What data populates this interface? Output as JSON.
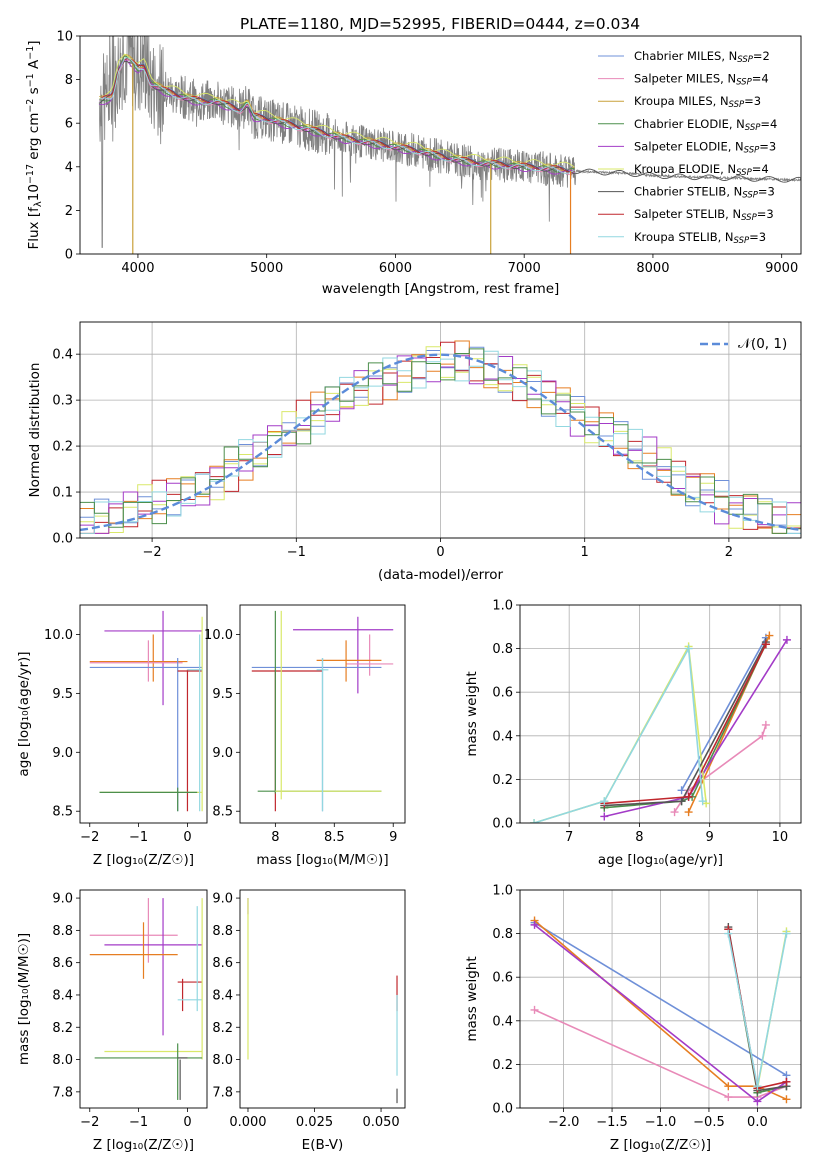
{
  "figure": {
    "title": "PLATE=1180, MJD=52995, FIBERID=0444, z=0.034",
    "series_colors": [
      "#6f90d8",
      "#e88ab8",
      "#c9a13a",
      "#4c8f4c",
      "#a33bc7",
      "#d9e86a",
      "#555555",
      "#c0272d",
      "#92d7e0"
    ]
  },
  "chart_data": [
    {
      "id": "spectrum",
      "type": "line",
      "title": "PLATE=1180, MJD=52995, FIBERID=0444, z=0.034",
      "xlabel": "wavelength [Angstrom, rest frame]",
      "ylabel": "Flux [f$_\\lambda$10$^{-17}$ erg cm$^{-2}$ s$^{-1}$ A$^{-1}$]",
      "ylabel_parts": [
        "Flux [f",
        "λ",
        "10",
        "−17",
        " erg cm",
        "−2",
        " s",
        "−1",
        " A",
        "−1",
        "]"
      ],
      "xlim": [
        3550,
        9150
      ],
      "ylim": [
        0,
        10
      ],
      "xticks": [
        4000,
        5000,
        6000,
        7000,
        8000,
        9000
      ],
      "yticks": [
        0,
        2,
        4,
        6,
        8,
        10
      ],
      "legend_position": "top-right",
      "legend": [
        {
          "name": "Chabrier MILES, N",
          "sub": "SSP",
          "suffix": "=2"
        },
        {
          "name": "Salpeter MILES, N",
          "sub": "SSP",
          "suffix": "=4"
        },
        {
          "name": "Kroupa MILES, N",
          "sub": "SSP",
          "suffix": "=3"
        },
        {
          "name": "Chabrier ELODIE, N",
          "sub": "SSP",
          "suffix": "=4"
        },
        {
          "name": "Salpeter ELODIE, N",
          "sub": "SSP",
          "suffix": "=3"
        },
        {
          "name": "Kroupa ELODIE, N",
          "sub": "SSP",
          "suffix": "=4"
        },
        {
          "name": "Chabrier STELIB, N",
          "sub": "SSP",
          "suffix": "=3"
        },
        {
          "name": "Salpeter STELIB, N",
          "sub": "SSP",
          "suffix": "=3"
        },
        {
          "name": "Kroupa STELIB, N",
          "sub": "SSP",
          "suffix": "=3"
        }
      ],
      "data_color": "#808080",
      "continuum": {
        "x": [
          3700,
          3800,
          3850,
          3900,
          3950,
          4000,
          4050,
          4100,
          4200,
          4300,
          4400,
          4500,
          4600,
          4700,
          4800,
          4850,
          4900,
          5000,
          5200,
          5400,
          5600,
          5800,
          6000,
          6200,
          6400,
          6600,
          6800,
          7000,
          7200,
          7400,
          7600,
          7800,
          8000,
          8200,
          8500,
          8800,
          9100
        ],
        "y": [
          7.0,
          7.2,
          8.5,
          9.0,
          8.8,
          8.5,
          8.6,
          7.8,
          7.5,
          7.3,
          7.1,
          7.0,
          7.0,
          6.8,
          6.6,
          6.9,
          6.3,
          6.2,
          5.9,
          5.6,
          5.3,
          5.1,
          4.9,
          4.7,
          4.4,
          4.2,
          4.1,
          4.0,
          3.9,
          3.8,
          3.75,
          3.7,
          3.6,
          3.55,
          3.5,
          3.45,
          3.4
        ]
      },
      "model_offsets": [
        0.05,
        -0.05,
        0.1,
        0.0,
        -0.1,
        0.25,
        0.0,
        0.05,
        -0.02
      ],
      "model_end": [
        7400,
        7400,
        7400,
        7400,
        7400,
        7400,
        9150,
        7400,
        7400
      ],
      "drop_lines": [
        {
          "x": 3960,
          "color": "#c9a13a"
        },
        {
          "x": 6740,
          "color": "#c9a13a"
        },
        {
          "x": 7360,
          "color": "#e67e22"
        }
      ]
    },
    {
      "id": "residuals",
      "type": "step",
      "xlabel": "(data-model)/error",
      "ylabel": "Normed distribution",
      "xlim": [
        -2.5,
        2.5
      ],
      "ylim": [
        0,
        0.47
      ],
      "xticks": [
        -2,
        -1,
        0,
        1,
        2
      ],
      "yticks": [
        0.0,
        0.1,
        0.2,
        0.3,
        0.4
      ],
      "grid": true,
      "legend": "𝒩(0, 1)",
      "legend_position": "top-right",
      "gauss_color": "#5b8bd9",
      "bin_width": 0.1,
      "bin_start": -2.5,
      "base": [
        0.03,
        0.04,
        0.05,
        0.06,
        0.07,
        0.08,
        0.09,
        0.1,
        0.11,
        0.13,
        0.15,
        0.17,
        0.19,
        0.21,
        0.23,
        0.25,
        0.27,
        0.29,
        0.31,
        0.33,
        0.34,
        0.35,
        0.36,
        0.37,
        0.38,
        0.38,
        0.38,
        0.37,
        0.36,
        0.35,
        0.34,
        0.33,
        0.31,
        0.29,
        0.27,
        0.25,
        0.23,
        0.21,
        0.19,
        0.17,
        0.15,
        0.13,
        0.11,
        0.1,
        0.08,
        0.07,
        0.06,
        0.05,
        0.04,
        0.03
      ]
    },
    {
      "id": "z_age",
      "type": "errorbar",
      "xlabel": "Z [log₁₀(Z/Z☉)]",
      "ylabel": "age  [log₁₀(age/yr)]",
      "xlim": [
        -2.2,
        0.4
      ],
      "ylim": [
        8.4,
        10.25
      ],
      "xticks": [
        -2,
        -1,
        0
      ],
      "yticks": [
        8.5,
        9.0,
        9.5,
        10.0
      ],
      "points": [
        {
          "c": "#a33bc7",
          "x": -0.5,
          "y": 10.03,
          "xe": [
            -1.7,
            0.3
          ],
          "ye": [
            9.4,
            10.2
          ]
        },
        {
          "c": "#e67e22",
          "x": -0.7,
          "y": 9.77,
          "xe": [
            -2.0,
            0.0
          ],
          "ye": [
            9.6,
            10.0
          ]
        },
        {
          "c": "#e88ab8",
          "x": -0.8,
          "y": 9.76,
          "xe": [
            -2.0,
            -0.1
          ],
          "ye": [
            9.6,
            9.95
          ]
        },
        {
          "c": "#6f90d8",
          "x": -0.2,
          "y": 9.72,
          "xe": [
            -2.0,
            0.3
          ],
          "ye": [
            8.5,
            9.8
          ]
        },
        {
          "c": "#c0272d",
          "x": 0.0,
          "y": 9.69,
          "xe": [
            -0.2,
            0.3
          ],
          "ye": [
            8.5,
            9.7
          ]
        },
        {
          "c": "#d9e86a",
          "x": 0.3,
          "y": 8.66,
          "xe": [
            -1.8,
            0.3
          ],
          "ye": [
            8.5,
            10.15
          ]
        },
        {
          "c": "#4c8f4c",
          "x": -0.2,
          "y": 8.66,
          "xe": [
            -1.8,
            0.2
          ],
          "ye": [
            8.5,
            8.7
          ]
        },
        {
          "c": "#92d7e0",
          "x": 0.25,
          "y": 9.7,
          "xe": [
            0.0,
            0.3
          ],
          "ye": [
            8.5,
            10.0
          ]
        }
      ]
    },
    {
      "id": "mass_age",
      "type": "errorbar",
      "xlabel": "mass [log₁₀(M/M☉)]",
      "xlim": [
        7.7,
        9.1
      ],
      "ylim": [
        8.4,
        10.25
      ],
      "xticks": [
        8.0,
        8.5,
        9.0
      ],
      "yticks": [
        8.5,
        9.0,
        9.5,
        10.0
      ],
      "points": [
        {
          "c": "#a33bc7",
          "x": 8.7,
          "y": 10.04,
          "xe": [
            8.15,
            9.0
          ],
          "ye": [
            9.5,
            10.15
          ]
        },
        {
          "c": "#e88ab8",
          "x": 8.8,
          "y": 9.75,
          "xe": [
            8.6,
            9.0
          ],
          "ye": [
            9.65,
            10.0
          ]
        },
        {
          "c": "#e67e22",
          "x": 8.6,
          "y": 9.78,
          "xe": [
            8.35,
            8.9
          ],
          "ye": [
            9.6,
            9.95
          ]
        },
        {
          "c": "#6f90d8",
          "x": 8.4,
          "y": 9.72,
          "xe": [
            7.8,
            8.9
          ],
          "ye": [
            8.5,
            9.8
          ]
        },
        {
          "c": "#c0272d",
          "x": 8.0,
          "y": 9.69,
          "xe": [
            7.8,
            8.4
          ],
          "ye": [
            8.5,
            9.7
          ]
        },
        {
          "c": "#4c8f4c",
          "x": 8.0,
          "y": 8.67,
          "xe": [
            7.85,
            8.9
          ],
          "ye": [
            8.65,
            10.2
          ]
        },
        {
          "c": "#d9e86a",
          "x": 8.05,
          "y": 8.67,
          "xe": [
            8.0,
            8.9
          ],
          "ye": [
            8.6,
            10.2
          ]
        },
        {
          "c": "#92d7e0",
          "x": 8.4,
          "y": 9.7,
          "xe": [
            8.35,
            8.45
          ],
          "ye": [
            8.5,
            9.8
          ]
        }
      ]
    },
    {
      "id": "age_weight",
      "type": "line",
      "xlabel": "age  [log₁₀(age/yr)]",
      "ylabel": "mass weight",
      "xlim": [
        6.3,
        10.3
      ],
      "ylim": [
        0,
        1.0
      ],
      "xticks": [
        7,
        8,
        9,
        10
      ],
      "yticks": [
        0.0,
        0.2,
        0.4,
        0.6,
        0.8,
        1.0
      ],
      "grid": true,
      "series": [
        {
          "c": "#6f90d8",
          "x": [
            8.6,
            9.8
          ],
          "y": [
            0.15,
            0.85
          ]
        },
        {
          "c": "#e88ab8",
          "x": [
            8.5,
            8.7,
            9.75,
            9.8
          ],
          "y": [
            0.05,
            0.15,
            0.4,
            0.45
          ]
        },
        {
          "c": "#e67e22",
          "x": [
            8.7,
            9.85
          ],
          "y": [
            0.05,
            0.86
          ]
        },
        {
          "c": "#4c8f4c",
          "x": [
            7.5,
            8.6,
            8.75,
            9.8
          ],
          "y": [
            0.07,
            0.1,
            0.12,
            0.82
          ]
        },
        {
          "c": "#a33bc7",
          "x": [
            7.5,
            8.7,
            10.1
          ],
          "y": [
            0.03,
            0.12,
            0.84
          ]
        },
        {
          "c": "#d9e86a",
          "x": [
            6.5,
            7.5,
            8.7,
            8.95
          ],
          "y": [
            0.0,
            0.1,
            0.81,
            0.09
          ]
        },
        {
          "c": "#555555",
          "x": [
            7.5,
            8.6,
            9.8
          ],
          "y": [
            0.08,
            0.1,
            0.83
          ]
        },
        {
          "c": "#c0272d",
          "x": [
            7.5,
            8.7,
            9.8
          ],
          "y": [
            0.09,
            0.12,
            0.82
          ]
        },
        {
          "c": "#92d7e0",
          "x": [
            6.5,
            7.5,
            8.7,
            8.9
          ],
          "y": [
            0.0,
            0.1,
            0.8,
            0.1
          ]
        }
      ]
    },
    {
      "id": "z_mass",
      "type": "errorbar",
      "xlabel": "Z [log₁₀(Z/Z☉)]",
      "ylabel": "mass [log₁₀(M/M☉)]",
      "xlim": [
        -2.2,
        0.4
      ],
      "ylim": [
        7.7,
        9.05
      ],
      "xticks": [
        -2,
        -1,
        0
      ],
      "yticks": [
        7.8,
        8.0,
        8.2,
        8.4,
        8.6,
        8.8,
        9.0
      ],
      "points": [
        {
          "c": "#e88ab8",
          "x": -0.8,
          "y": 8.77,
          "xe": [
            -2.0,
            -0.2
          ],
          "ye": [
            8.6,
            9.0
          ]
        },
        {
          "c": "#a33bc7",
          "x": -0.5,
          "y": 8.71,
          "xe": [
            -1.7,
            0.3
          ],
          "ye": [
            8.15,
            9.0
          ]
        },
        {
          "c": "#e67e22",
          "x": -0.9,
          "y": 8.65,
          "xe": [
            -2.0,
            -0.2
          ],
          "ye": [
            8.5,
            8.85
          ]
        },
        {
          "c": "#c0272d",
          "x": -0.1,
          "y": 8.48,
          "xe": [
            -0.2,
            0.3
          ],
          "ye": [
            8.3,
            8.5
          ]
        },
        {
          "c": "#92d7e0",
          "x": 0.2,
          "y": 8.37,
          "xe": [
            -0.2,
            0.3
          ],
          "ye": [
            8.3,
            8.95
          ]
        },
        {
          "c": "#d9e86a",
          "x": 0.3,
          "y": 8.05,
          "xe": [
            -1.7,
            0.3
          ],
          "ye": [
            8.0,
            9.0
          ]
        },
        {
          "c": "#4c8f4c",
          "x": -0.2,
          "y": 8.01,
          "xe": [
            -1.9,
            0.3
          ],
          "ye": [
            7.75,
            8.1
          ]
        },
        {
          "c": "#555555",
          "x": -0.15,
          "y": 8.01,
          "xe": [
            -0.2,
            0.0
          ],
          "ye": [
            7.75,
            8.0
          ]
        }
      ]
    },
    {
      "id": "ebv_mass",
      "type": "errorbar",
      "xlabel": "E(B-V)",
      "xlim": [
        -0.003,
        0.059
      ],
      "ylim": [
        7.7,
        9.05
      ],
      "xticks": [
        0.0,
        0.025,
        0.05
      ],
      "xtick_labels": [
        "0.000",
        "0.025",
        "0.050"
      ],
      "yticks": [
        7.8,
        8.0,
        8.2,
        8.4,
        8.6,
        8.8,
        9.0
      ],
      "points": [
        {
          "c": "#a33bc7",
          "x": 0.0,
          "y": 8.95,
          "xe": [
            0.0,
            0.0
          ],
          "ye": [
            8.9,
            9.0
          ]
        },
        {
          "c": "#d9e86a",
          "x": 0.0,
          "y": 8.5,
          "xe": [
            0.0,
            0.0
          ],
          "ye": [
            8.0,
            9.0
          ]
        },
        {
          "c": "#c0272d",
          "x": 0.056,
          "y": 8.45,
          "xe": [
            0.056,
            0.056
          ],
          "ye": [
            8.3,
            8.52
          ]
        },
        {
          "c": "#92d7e0",
          "x": 0.056,
          "y": 8.2,
          "xe": [
            0.056,
            0.056
          ],
          "ye": [
            7.9,
            8.4
          ]
        },
        {
          "c": "#555555",
          "x": 0.056,
          "y": 7.78,
          "xe": [
            0.056,
            0.056
          ],
          "ye": [
            7.73,
            7.82
          ]
        }
      ]
    },
    {
      "id": "z_weight",
      "type": "line",
      "xlabel": "Z [log₁₀(Z/Z☉)]",
      "ylabel": "mass weight",
      "xlim": [
        -2.45,
        0.45
      ],
      "ylim": [
        0,
        1.0
      ],
      "xticks": [
        -2.0,
        -1.5,
        -1.0,
        -0.5,
        0.0
      ],
      "xtick_labels": [
        "−2.0",
        "−1.5",
        "−1.0",
        "−0.5",
        "0.0"
      ],
      "yticks": [
        0.0,
        0.2,
        0.4,
        0.6,
        0.8,
        1.0
      ],
      "grid": true,
      "series": [
        {
          "c": "#6f90d8",
          "x": [
            -2.3,
            0.3
          ],
          "y": [
            0.85,
            0.15
          ]
        },
        {
          "c": "#e88ab8",
          "x": [
            -2.3,
            -0.3,
            0.0,
            0.3
          ],
          "y": [
            0.45,
            0.05,
            0.05,
            0.1
          ]
        },
        {
          "c": "#e67e22",
          "x": [
            -2.3,
            -0.3,
            0.0,
            0.3
          ],
          "y": [
            0.86,
            0.1,
            0.1,
            0.04
          ]
        },
        {
          "c": "#4c8f4c",
          "x": [
            -0.3,
            0.0,
            0.3
          ],
          "y": [
            0.82,
            0.07,
            0.1
          ]
        },
        {
          "c": "#a33bc7",
          "x": [
            -2.3,
            0.0,
            0.3
          ],
          "y": [
            0.84,
            0.03,
            0.12
          ]
        },
        {
          "c": "#d9e86a",
          "x": [
            0.0,
            0.3
          ],
          "y": [
            0.09,
            0.81
          ]
        },
        {
          "c": "#555555",
          "x": [
            -0.3,
            0.0,
            0.3
          ],
          "y": [
            0.83,
            0.08,
            0.1
          ]
        },
        {
          "c": "#c0272d",
          "x": [
            -0.3,
            0.0,
            0.3
          ],
          "y": [
            0.82,
            0.09,
            0.12
          ]
        },
        {
          "c": "#92d7e0",
          "x": [
            -0.3,
            0.0,
            0.3
          ],
          "y": [
            0.8,
            0.1,
            0.8
          ]
        }
      ]
    }
  ]
}
